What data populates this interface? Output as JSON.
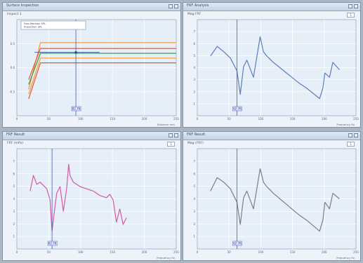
{
  "colors": {
    "orange": "#f39a3a",
    "red_orange": "#e8552e",
    "green": "#3a9a4a",
    "blue_series": "#5b7fb4",
    "magenta_series": "#d35aa6",
    "gray_series": "#7a7f86",
    "grid": "#ffffff",
    "bg": "#eef3f9",
    "cursor": "#4d5fa8"
  },
  "panels": {
    "top_left": {
      "title": "Surface Inspection",
      "header": "Inspect 1",
      "legend": [
        "Free-Mention SPL",
        "Inspection SPL"
      ],
      "y_ticks": [
        "0.5",
        "0.0",
        "-0.5"
      ],
      "x_ticks": [
        "0",
        "50",
        "100",
        "150",
        "200",
        "250"
      ],
      "cursor_label": "82.76",
      "footer": "Distance mm",
      "chart_data": {
        "type": "line",
        "x": [
          0,
          20,
          250
        ],
        "series": [
          {
            "values": [
              -0.55,
              0.42,
              0.42
            ],
            "color": "#f39a3a"
          },
          {
            "values": [
              -0.35,
              0.3,
              0.3
            ],
            "color": "#e8552e"
          },
          {
            "values": [
              -0.45,
              0.2,
              0.2
            ],
            "color": "#3a9a4a"
          },
          {
            "values": [
              -0.65,
              0.1,
              0.1
            ],
            "color": "#f39a3a"
          },
          {
            "values": [
              -0.75,
              0.0,
              0.0
            ],
            "color": "#e8552e"
          }
        ],
        "ylim": [
          -1.0,
          1.0
        ]
      }
    },
    "top_right": {
      "title": "FRF Analysis",
      "header": "Mag FRF",
      "legend_mark": "1",
      "cursor_label": "62.76",
      "footer": "Frequency Hz",
      "y_ticks": [
        "7",
        "6",
        "5",
        "4",
        "3",
        "2",
        "1"
      ],
      "x_ticks": [
        "0",
        "50",
        "100",
        "150",
        "200",
        "250"
      ],
      "chart_data": {
        "type": "line",
        "x": [
          5,
          15,
          25,
          35,
          45,
          50,
          55,
          60,
          70,
          80,
          85,
          90,
          100,
          110,
          120,
          130,
          140,
          150,
          160,
          170,
          175,
          178,
          185,
          190,
          200
        ],
        "series": [
          {
            "values": [
              4.6,
              5.5,
              5.0,
              4.4,
              3.2,
              1.0,
              3.6,
              4.2,
              2.6,
              6.4,
              5.0,
              4.6,
              4.0,
              3.5,
              3.0,
              2.5,
              2.0,
              1.6,
              1.1,
              0.6,
              1.6,
              3.0,
              2.6,
              4.0,
              3.3
            ],
            "color": "#5b7fb4"
          }
        ]
      }
    },
    "bottom_left": {
      "title": "FRF Result",
      "header": "FRF (mPa)",
      "legend_mark": "1",
      "cursor_label": "62.76",
      "footer": "Frequency Hz",
      "y_ticks": [
        "7",
        "6",
        "5",
        "4",
        "3",
        "2",
        "1"
      ],
      "x_ticks": [
        "0",
        "50",
        "100",
        "150",
        "200",
        "250"
      ],
      "chart_data": {
        "type": "line",
        "x": [
          5,
          10,
          15,
          20,
          30,
          35,
          38,
          42,
          45,
          50,
          55,
          60,
          63,
          65,
          70,
          75,
          80,
          90,
          100,
          110,
          120,
          125,
          130,
          135,
          140,
          145,
          150
        ],
        "series": [
          {
            "values": [
              4.2,
              5.6,
              4.8,
              5.0,
              4.4,
              3.4,
              0.6,
              2.6,
              4.0,
              4.6,
              2.4,
              4.4,
              6.6,
              5.6,
              5.0,
              4.8,
              4.6,
              4.4,
              4.2,
              3.8,
              3.6,
              3.9,
              3.4,
              1.4,
              2.6,
              1.2,
              1.8
            ],
            "color": "#d35aa6"
          }
        ]
      }
    },
    "bottom_right": {
      "title": "FRF Result",
      "header": "Mag (FRF)",
      "legend_mark": "1",
      "cursor_label": "62.76",
      "footer": "Frequency Hz",
      "y_ticks": [
        "7",
        "6",
        "5",
        "4",
        "3",
        "2",
        "1"
      ],
      "x_ticks": [
        "0",
        "50",
        "100",
        "150",
        "200",
        "250"
      ],
      "chart_data": {
        "type": "line",
        "x": [
          5,
          15,
          25,
          35,
          45,
          50,
          55,
          60,
          70,
          80,
          85,
          90,
          100,
          110,
          120,
          130,
          140,
          150,
          160,
          170,
          175,
          178,
          185,
          190,
          200
        ],
        "series": [
          {
            "values": [
              4.2,
              5.4,
              5.0,
              4.4,
              3.2,
              1.2,
              3.6,
              4.2,
              2.6,
              6.2,
              5.0,
              4.6,
              4.0,
              3.5,
              3.0,
              2.5,
              2.0,
              1.6,
              1.1,
              0.6,
              1.6,
              3.2,
              2.6,
              4.0,
              3.5
            ],
            "color": "#7a7f86"
          }
        ]
      }
    }
  }
}
